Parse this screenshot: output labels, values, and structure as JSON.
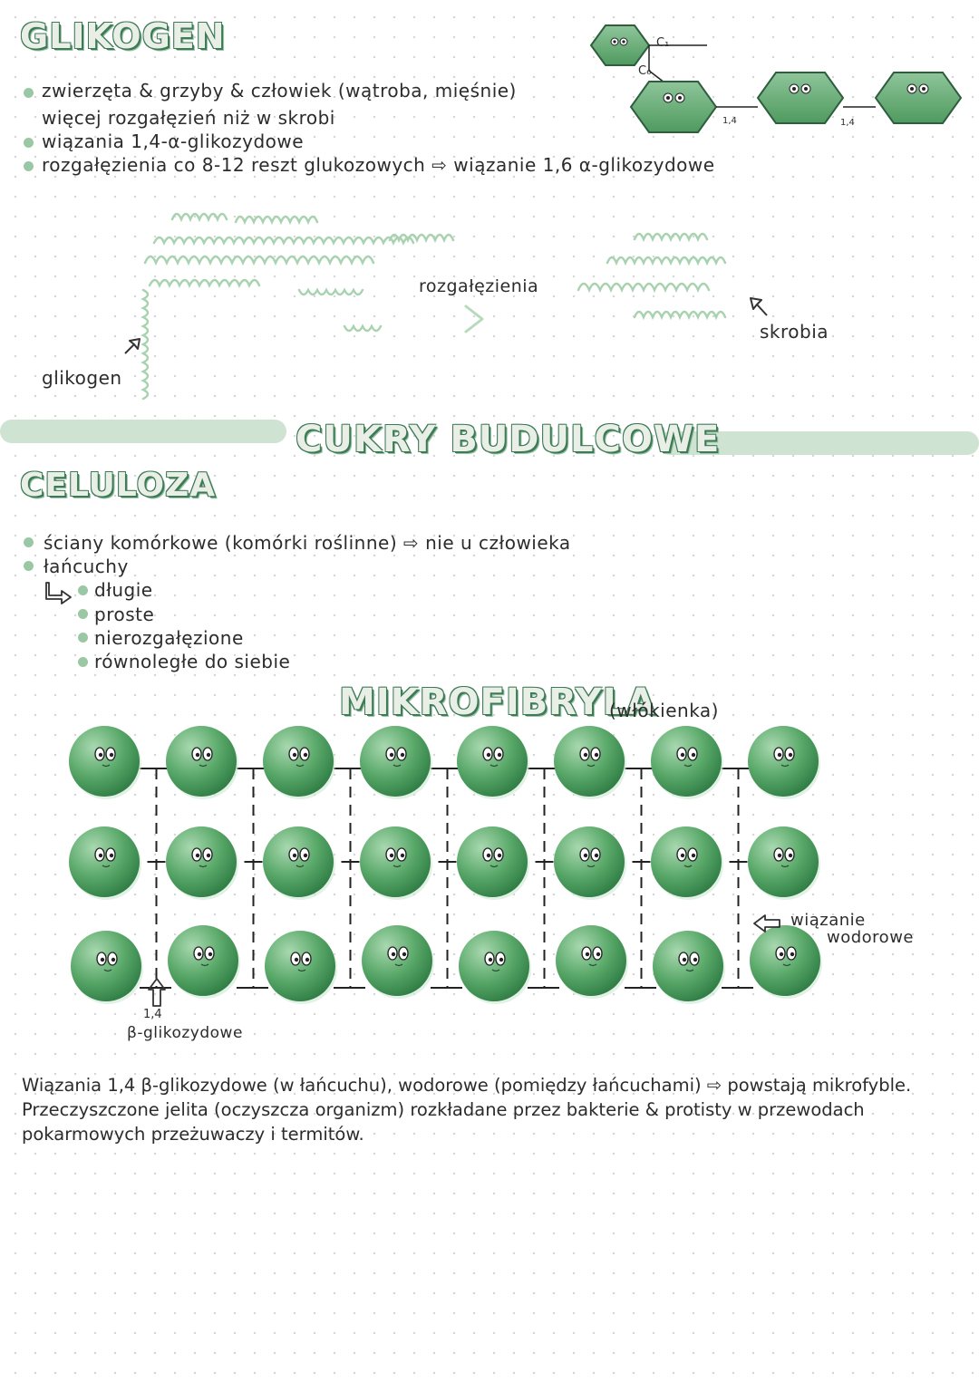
{
  "glikogen": {
    "title": "GLIKOGEN",
    "lines": [
      "zwierzęta  &  grzyby  &  człowiek (wątroba, mięśnie)",
      "więcej rozgałęzień niż w skrobi",
      "wiązania 1,4-α-glikozydowe",
      "rozgałęzienia co 8-12 reszt glukozowych ⇨ wiązanie 1,6 α-glikozydowe"
    ],
    "chain": {
      "c1": "C₁",
      "c6": "C₆",
      "bond1": "1,4",
      "bond2": "1,4",
      "num1": "1",
      "num4": "4"
    },
    "diagram": {
      "glikogen_label": "glikogen",
      "rozgalezienia_label": "rozgałęzienia",
      "skrobia_label": "skrobia"
    }
  },
  "section_title": "CUKRY BUDULCOWE",
  "celuloza": {
    "title": "CELULOZA",
    "line1": "ściany komórkowe (komórki roślinne) ⇨ nie u człowieka",
    "line2": "łańcuchy",
    "sub_items": [
      "długie",
      "proste",
      "nierozgałęzione",
      "równoległe do siebie"
    ]
  },
  "mikrofibryla": {
    "title": "MIKROFIBRYLA",
    "subtitle": "(włókienka)",
    "hydrogen_label_1": "wiązanie",
    "hydrogen_label_2": "wodorowe",
    "beta_label_1": "1,4",
    "beta_label_2": "β-glikozydowe"
  },
  "summary": {
    "line1": "Wiązania 1,4 β-glikozydowe (w łańcuchu), wodorowe (pomiędzy łańcuchami) ⇨ powstają mikrofyble.",
    "line2": "Przeczyszczone jelita (oczyszcza organizm) rozkładane przez bakterie & protisty w przewodach",
    "line3": "pokarmowych przeżuwaczy i termitów."
  },
  "colors": {
    "accent_green": "#3d7a55",
    "light_green": "#9ac8a4",
    "band": "#cfe3d2",
    "molecule": "#4f9a5f"
  }
}
